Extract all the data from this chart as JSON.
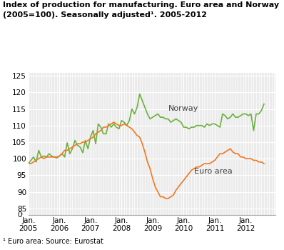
{
  "title_line1": "Index of production for manufacturing. Euro area and Norway",
  "title_line2": "(2005=100). Seasonally adjusted¹. 2005-2012",
  "footnote": "¹ Euro area: Source: Eurostat",
  "norway_color": "#6ab040",
  "euroarea_color": "#f07820",
  "grid_color": "#d8d8d8",
  "background_color": "#ebebeb",
  "norway_label": "Norway",
  "euroarea_label": "Euro area",
  "norway_data": [
    98.5,
    99.5,
    100.5,
    99.0,
    102.5,
    100.5,
    100.8,
    100.5,
    101.5,
    100.8,
    100.5,
    100.2,
    100.8,
    101.5,
    100.5,
    104.8,
    101.5,
    103.0,
    105.5,
    104.0,
    103.5,
    101.8,
    105.5,
    103.0,
    106.5,
    108.5,
    104.5,
    110.5,
    109.5,
    107.5,
    107.5,
    110.5,
    109.5,
    110.5,
    109.5,
    109.0,
    111.5,
    111.0,
    110.0,
    111.5,
    115.0,
    113.5,
    115.5,
    119.5,
    117.5,
    115.5,
    113.5,
    112.0,
    112.5,
    113.0,
    113.5,
    112.5,
    112.5,
    112.0,
    112.0,
    111.0,
    111.5,
    112.0,
    111.5,
    111.0,
    109.5,
    109.5,
    109.0,
    109.5,
    109.5,
    110.0,
    110.0,
    110.0,
    109.5,
    110.5,
    110.0,
    110.5,
    110.5,
    110.0,
    109.5,
    113.5,
    113.0,
    112.0,
    112.5,
    113.5,
    112.5,
    112.5,
    113.0,
    113.5,
    113.5,
    113.0,
    113.5,
    108.5,
    113.5,
    113.5,
    114.5,
    116.5
  ],
  "euroarea_data": [
    98.5,
    98.5,
    99.0,
    99.5,
    100.0,
    100.5,
    100.0,
    100.5,
    100.5,
    100.5,
    100.5,
    100.5,
    100.8,
    101.5,
    102.5,
    102.5,
    103.0,
    103.5,
    104.0,
    104.5,
    104.5,
    105.0,
    105.0,
    105.5,
    106.0,
    106.5,
    107.5,
    108.0,
    108.5,
    109.5,
    109.5,
    110.0,
    110.5,
    111.0,
    110.5,
    110.0,
    110.0,
    110.5,
    110.0,
    109.5,
    109.0,
    108.0,
    107.0,
    106.5,
    104.5,
    102.0,
    99.0,
    97.0,
    94.0,
    91.5,
    90.0,
    88.5,
    88.5,
    88.0,
    88.0,
    88.5,
    89.0,
    90.5,
    91.5,
    92.5,
    93.5,
    94.5,
    95.5,
    96.5,
    97.0,
    97.5,
    97.5,
    98.0,
    98.5,
    98.5,
    98.5,
    99.0,
    99.5,
    100.5,
    101.5,
    101.5,
    102.0,
    102.5,
    103.0,
    102.0,
    101.5,
    101.5,
    100.5,
    100.5,
    100.0,
    100.0,
    100.0,
    99.5,
    99.5,
    99.0,
    99.0,
    98.5
  ]
}
